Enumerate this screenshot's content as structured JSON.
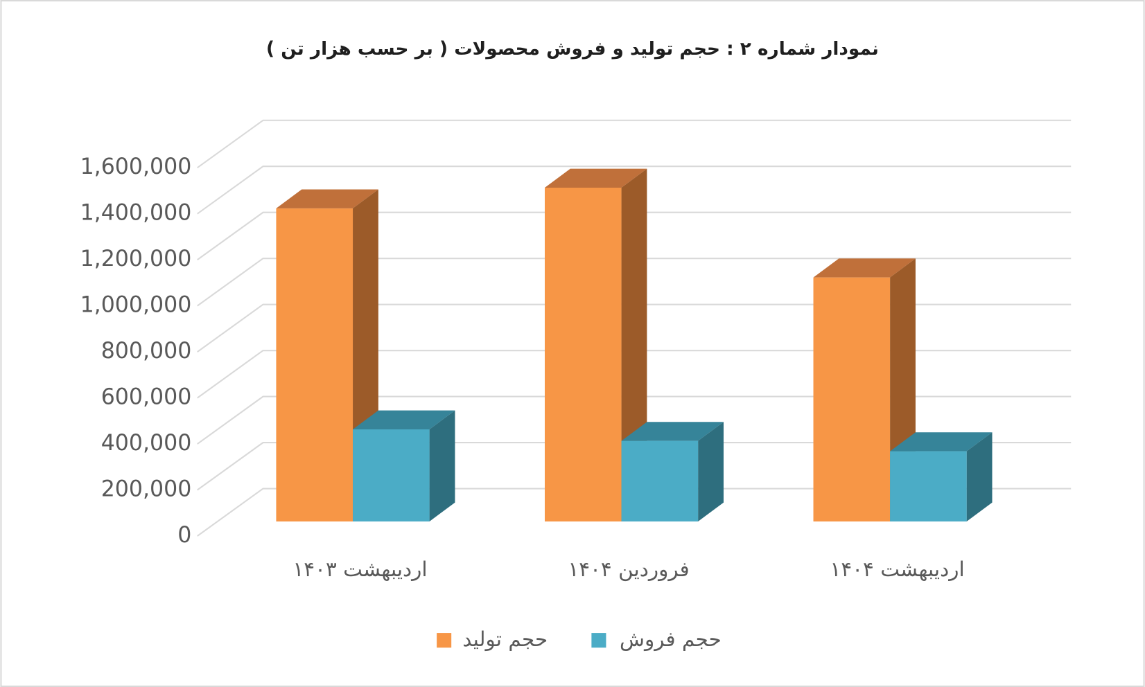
{
  "chart_data": {
    "type": "bar3d",
    "title": "نمودار شماره ۲ : حجم تولید و فروش محصولات ( بر حسب هزار تن )",
    "categories": [
      "اردیبهشت ۱۴۰۳",
      "فروردین ۱۴۰۴",
      "اردیبهشت ۱۴۰۴"
    ],
    "series": [
      {
        "name": "حجم تولید",
        "color": "#f79646",
        "values": [
          1360000,
          1450000,
          1060000
        ]
      },
      {
        "name": "حجم فروش",
        "color": "#4bacc6",
        "values": [
          400000,
          350000,
          305000
        ]
      }
    ],
    "ylim": [
      0,
      1600000
    ],
    "yticks": [
      0,
      {
        "value": 200000,
        "label": "200,000"
      },
      {
        "value": 400000,
        "label": "400,000"
      },
      {
        "value": 600000,
        "label": "600,000"
      },
      {
        "value": 800000,
        "label": "800,000"
      },
      {
        "value": 1000000,
        "label": "1,000,000"
      },
      {
        "value": 1200000,
        "label": "1,200,000"
      },
      {
        "value": 1400000,
        "label": "1,400,000"
      },
      {
        "value": 1600000,
        "label": "1,600,000"
      }
    ],
    "grid": true
  }
}
